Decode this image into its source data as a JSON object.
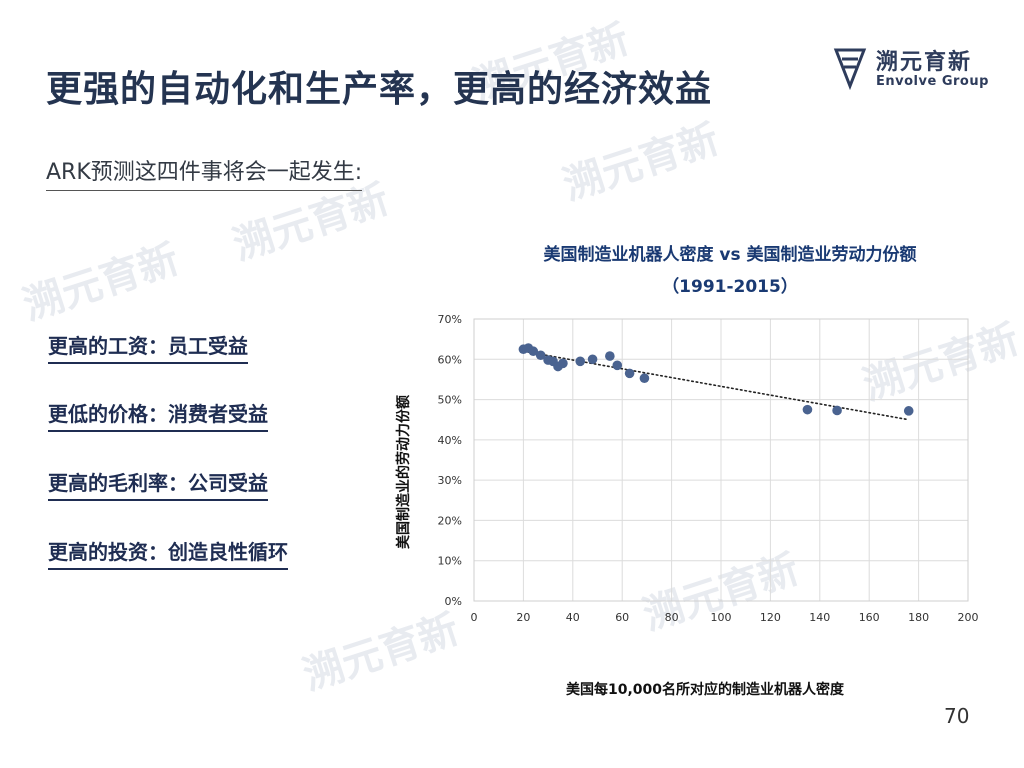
{
  "slide": {
    "title": "更强的自动化和生产率，更高的经济效益",
    "subtitle": "ARK预测这四件事将会一起发生:",
    "page_number": "70"
  },
  "logo": {
    "cn": "溯元育新",
    "en": "Envolve Group"
  },
  "benefits": [
    "更高的工资：员工受益",
    "更低的价格：消费者受益",
    "更高的毛利率：公司受益",
    "更高的投资：创造良性循环"
  ],
  "colors": {
    "title": "#243451",
    "accent": "#1f2d52",
    "marker": "#4a6390",
    "chart_title": "#1a3a73"
  },
  "chart_data": {
    "type": "scatter",
    "title_line1": "美国制造业机器人密度 vs 美国制造业劳动力份额",
    "title_line2": "（1991-2015）",
    "xlabel": "美国每10,000名所对应的制造业机器人密度",
    "ylabel": "美国制造业的劳动力份额",
    "xlim": [
      0,
      200
    ],
    "ylim": [
      0,
      70
    ],
    "x_ticks": [
      "0",
      "20",
      "40",
      "60",
      "80",
      "100",
      "120",
      "140",
      "160",
      "180",
      "200"
    ],
    "y_ticks": [
      "0%",
      "10%",
      "20%",
      "30%",
      "40%",
      "50%",
      "60%",
      "70%"
    ],
    "grid": true,
    "points": [
      {
        "x": 20,
        "y": 62.5
      },
      {
        "x": 22,
        "y": 62.8
      },
      {
        "x": 24,
        "y": 62.0
      },
      {
        "x": 27,
        "y": 61.0
      },
      {
        "x": 30,
        "y": 59.8
      },
      {
        "x": 32,
        "y": 59.5
      },
      {
        "x": 34,
        "y": 58.2
      },
      {
        "x": 36,
        "y": 59.0
      },
      {
        "x": 43,
        "y": 59.5
      },
      {
        "x": 48,
        "y": 60.0
      },
      {
        "x": 55,
        "y": 60.8
      },
      {
        "x": 58,
        "y": 58.5
      },
      {
        "x": 63,
        "y": 56.5
      },
      {
        "x": 69,
        "y": 55.3
      },
      {
        "x": 135,
        "y": 47.5
      },
      {
        "x": 147,
        "y": 47.3
      },
      {
        "x": 176,
        "y": 47.2
      }
    ],
    "trendline": {
      "x": [
        20,
        176
      ],
      "y": [
        62,
        45
      ],
      "style": "dotted"
    }
  }
}
